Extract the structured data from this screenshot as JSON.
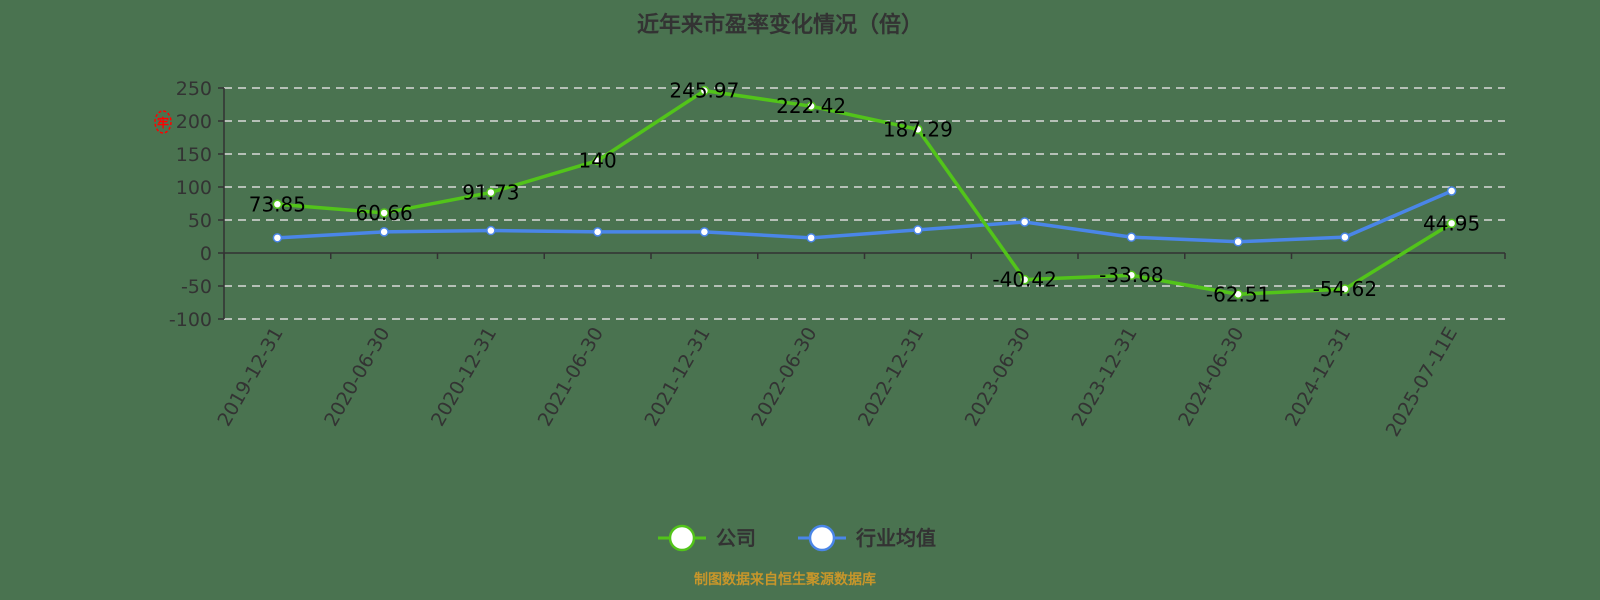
{
  "title": "近年来市盈率变化情况（倍）",
  "source_note": "制图数据来自恒生聚源数据库",
  "legend": [
    {
      "label": "公司",
      "color": "#52c41a"
    },
    {
      "label": "行业均值",
      "color": "#4a86e8"
    }
  ],
  "chart_data": {
    "type": "line",
    "title": "近年来市盈率变化情况（倍）",
    "xlabel": "",
    "ylabel": "",
    "ylim": [
      -100,
      250
    ],
    "yticks": [
      250,
      200,
      150,
      100,
      50,
      0,
      -50,
      -100
    ],
    "grid": "horizontal dashed",
    "legend_position": "bottom-center",
    "categories": [
      "2019-12-31",
      "2020-06-30",
      "2020-12-31",
      "2021-06-30",
      "2021-12-31",
      "2022-06-30",
      "2022-12-31",
      "2023-06-30",
      "2023-12-31",
      "2024-06-30",
      "2024-12-31",
      "2025-07-11E"
    ],
    "series": [
      {
        "name": "公司",
        "color": "#52c41a",
        "labels_shown": true,
        "values": [
          73.85,
          60.66,
          91.73,
          140,
          245.97,
          222.42,
          187.29,
          -40.42,
          -33.68,
          -62.51,
          -54.62,
          44.95
        ]
      },
      {
        "name": "行业均值",
        "color": "#4a86e8",
        "labels_shown": false,
        "values": [
          23,
          32,
          34,
          32,
          32,
          23,
          35,
          47,
          24,
          17,
          24,
          94
        ]
      }
    ]
  }
}
